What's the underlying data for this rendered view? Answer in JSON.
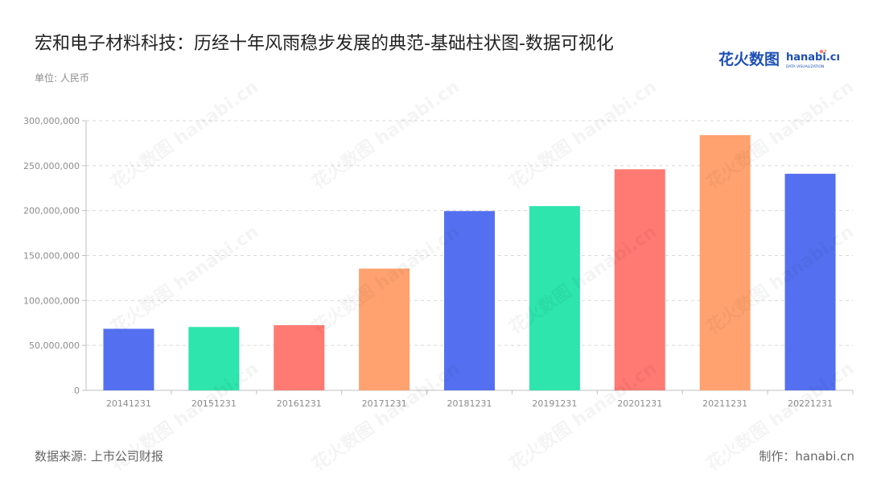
{
  "header": {
    "title": "宏和电子材料科技：历经十年风雨稳步发展的典范-基础柱状图-数据可视化",
    "unit": "单位: 人民币"
  },
  "brand": {
    "logo_cn": "花火数图",
    "logo_en": "hanabi.cn",
    "logo_sub": "DATA VISUALIZATION",
    "logo_color": "#1d4fb5",
    "watermark": "花火数图 hanabi.cn"
  },
  "footer": {
    "source": "数据来源: 上市公司财报",
    "credit": "制作：hanabi.cn"
  },
  "chart_data": {
    "type": "bar",
    "categories": [
      "20141231",
      "20151231",
      "20161231",
      "20171231",
      "20181231",
      "20191231",
      "20201231",
      "20211231",
      "20221231"
    ],
    "values": [
      68500000,
      70500000,
      72500000,
      135500000,
      199500000,
      205000000,
      246000000,
      284000000,
      241000000
    ],
    "colors": [
      "#5470f0",
      "#2de5ad",
      "#ff7a72",
      "#ffa26f",
      "#5470f0",
      "#2de5ad",
      "#ff7a72",
      "#ffa26f",
      "#5470f0"
    ],
    "ylim": [
      0,
      300000000
    ],
    "yticks": [
      "0",
      "50,000,000",
      "100,000,000",
      "150,000,000",
      "200,000,000",
      "250,000,000",
      "300,000,000"
    ],
    "grid": true,
    "legend": "none"
  }
}
